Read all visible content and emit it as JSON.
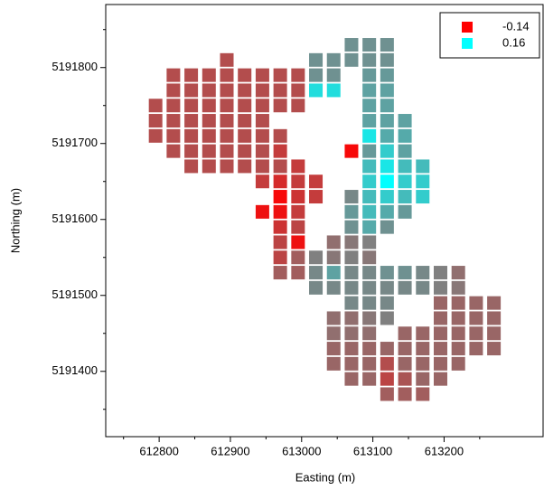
{
  "chart_data": {
    "type": "heatmap",
    "xlabel": "Easting (m)",
    "ylabel": "Northing (m)",
    "xlim": [
      612725,
      613339
    ],
    "ylim": [
      5191314,
      5191883
    ],
    "xticks": [
      612800,
      612900,
      613000,
      613100,
      613200
    ],
    "yticks": [
      5191400,
      5191500,
      5191600,
      5191700,
      5191800
    ],
    "xminorticks": [
      612750,
      612850,
      612950,
      613050,
      613150,
      613250
    ],
    "yminorticks": [
      5191350,
      5191450,
      5191550,
      5191650,
      5191750,
      5191850
    ],
    "legend": [
      {
        "value": -0.14,
        "color": "#ff0000"
      },
      {
        "value": 0.16,
        "color": "#00ffff"
      }
    ],
    "x": [
      612795,
      612820,
      612845,
      612870,
      612895,
      612920,
      612945,
      612970,
      612995,
      613020,
      613045,
      613070,
      613095,
      613120,
      613145,
      613170,
      613195,
      613220,
      613245,
      613270
    ],
    "y": [
      5191830,
      5191810,
      5191790,
      5191770,
      5191750,
      5191730,
      5191710,
      5191690,
      5191670,
      5191650,
      5191630,
      5191610,
      5191590,
      5191570,
      5191550,
      5191530,
      5191510,
      5191490,
      5191470,
      5191450,
      5191430,
      5191410,
      5191390,
      5191370
    ],
    "values": [
      [
        null,
        null,
        null,
        null,
        null,
        null,
        null,
        null,
        null,
        null,
        null,
        0.03,
        0.03,
        0.03,
        null,
        null,
        null,
        null,
        null,
        null
      ],
      [
        null,
        null,
        null,
        null,
        -0.05,
        null,
        null,
        null,
        null,
        0.03,
        0.03,
        0.03,
        0.03,
        0.03,
        null,
        null,
        null,
        null,
        null,
        null
      ],
      [
        null,
        -0.05,
        -0.05,
        -0.05,
        -0.05,
        -0.05,
        -0.05,
        -0.05,
        -0.05,
        0.03,
        0.03,
        null,
        0.04,
        0.04,
        null,
        null,
        null,
        null,
        null,
        null
      ],
      [
        null,
        -0.05,
        -0.05,
        -0.05,
        -0.05,
        -0.05,
        -0.05,
        -0.05,
        -0.05,
        0.12,
        0.12,
        null,
        0.05,
        0.05,
        null,
        null,
        null,
        null,
        null,
        null
      ],
      [
        -0.05,
        -0.05,
        -0.05,
        -0.05,
        -0.05,
        -0.05,
        -0.05,
        -0.05,
        -0.05,
        null,
        null,
        null,
        0.05,
        0.05,
        null,
        null,
        null,
        null,
        null,
        null
      ],
      [
        -0.05,
        -0.05,
        -0.05,
        -0.05,
        -0.05,
        -0.05,
        -0.05,
        null,
        null,
        null,
        null,
        null,
        0.05,
        0.05,
        0.05,
        null,
        null,
        null,
        null,
        null
      ],
      [
        -0.05,
        -0.05,
        -0.05,
        -0.05,
        -0.05,
        -0.05,
        -0.05,
        -0.05,
        null,
        null,
        null,
        null,
        0.13,
        0.06,
        0.06,
        null,
        null,
        null,
        null,
        null
      ],
      [
        null,
        -0.05,
        -0.05,
        -0.05,
        -0.05,
        -0.05,
        -0.05,
        -0.07,
        null,
        null,
        null,
        -0.13,
        0.04,
        0.1,
        0.05,
        null,
        null,
        null,
        null,
        null
      ],
      [
        null,
        null,
        -0.05,
        -0.05,
        -0.05,
        -0.05,
        -0.05,
        -0.05,
        -0.07,
        null,
        null,
        null,
        0.08,
        0.13,
        0.08,
        0.08,
        null,
        null,
        null,
        null
      ],
      [
        null,
        null,
        null,
        null,
        null,
        null,
        -0.07,
        -0.09,
        -0.07,
        -0.07,
        null,
        null,
        0.1,
        0.16,
        0.1,
        0.1,
        null,
        null,
        null,
        null
      ],
      [
        null,
        null,
        null,
        null,
        null,
        null,
        null,
        -0.13,
        -0.08,
        -0.07,
        null,
        0.02,
        0.08,
        0.1,
        0.08,
        0.1,
        null,
        null,
        null,
        null
      ],
      [
        null,
        null,
        null,
        null,
        null,
        null,
        -0.12,
        -0.12,
        -0.07,
        null,
        null,
        0.04,
        0.08,
        0.06,
        0.04,
        null,
        null,
        null,
        null,
        null
      ],
      [
        null,
        null,
        null,
        null,
        null,
        null,
        null,
        -0.08,
        -0.06,
        null,
        null,
        0.03,
        0.06,
        0.03,
        null,
        null,
        null,
        null,
        null,
        null
      ],
      [
        null,
        null,
        null,
        null,
        null,
        null,
        null,
        -0.06,
        -0.12,
        null,
        -0.01,
        0.0,
        0.01,
        null,
        null,
        null,
        null,
        null,
        null,
        null
      ],
      [
        null,
        null,
        null,
        null,
        null,
        null,
        null,
        -0.06,
        -0.03,
        0.01,
        0.0,
        0.01,
        0.0,
        null,
        null,
        null,
        null,
        null,
        null,
        null
      ],
      [
        null,
        null,
        null,
        null,
        null,
        null,
        null,
        -0.03,
        -0.03,
        0.02,
        0.05,
        0.02,
        0.02,
        0.03,
        0.03,
        0.02,
        0.01,
        -0.01,
        null,
        null
      ],
      [
        null,
        null,
        null,
        null,
        null,
        null,
        null,
        null,
        null,
        0.02,
        0.02,
        0.02,
        0.02,
        0.02,
        0.02,
        0.02,
        0.01,
        0.0,
        null,
        null
      ],
      [
        null,
        null,
        null,
        null,
        null,
        null,
        null,
        null,
        null,
        null,
        null,
        0.02,
        0.02,
        0.02,
        null,
        null,
        -0.02,
        -0.02,
        -0.02,
        -0.02
      ],
      [
        null,
        null,
        null,
        null,
        null,
        null,
        null,
        null,
        null,
        null,
        -0.01,
        -0.01,
        0.0,
        0.01,
        null,
        null,
        -0.02,
        -0.02,
        -0.02,
        -0.02
      ],
      [
        null,
        null,
        null,
        null,
        null,
        null,
        null,
        null,
        null,
        null,
        -0.01,
        -0.01,
        -0.01,
        null,
        -0.02,
        -0.02,
        -0.02,
        -0.02,
        -0.02,
        -0.02
      ],
      [
        null,
        null,
        null,
        null,
        null,
        null,
        null,
        null,
        null,
        null,
        -0.02,
        -0.02,
        -0.02,
        -0.02,
        -0.02,
        -0.02,
        -0.02,
        -0.02,
        -0.02,
        -0.02
      ],
      [
        null,
        null,
        null,
        null,
        null,
        null,
        null,
        null,
        null,
        null,
        -0.02,
        -0.02,
        -0.02,
        -0.05,
        -0.02,
        -0.02,
        -0.02,
        -0.02,
        null,
        null
      ],
      [
        null,
        null,
        null,
        null,
        null,
        null,
        null,
        null,
        null,
        null,
        null,
        -0.02,
        -0.02,
        -0.06,
        -0.04,
        -0.02,
        -0.02,
        null,
        null,
        null
      ],
      [
        null,
        null,
        null,
        null,
        null,
        null,
        null,
        null,
        null,
        null,
        null,
        null,
        null,
        -0.03,
        -0.03,
        -0.03,
        null,
        null,
        null,
        null
      ]
    ]
  }
}
